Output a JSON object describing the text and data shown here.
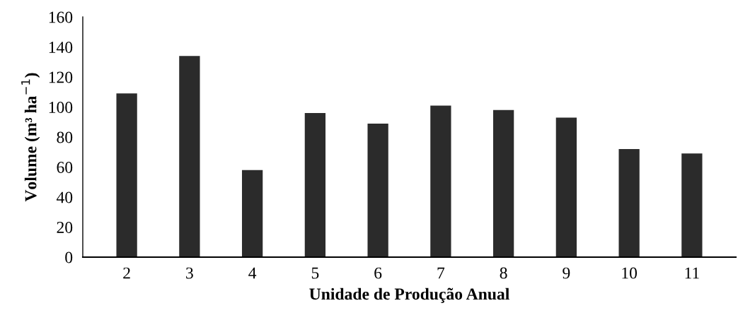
{
  "chart_data": {
    "type": "bar",
    "xlabel": "Unidade de Produção Anual",
    "ylabel": "Volume (m³ ha$^{−1}$)",
    "categories": [
      "2",
      "3",
      "4",
      "5",
      "6",
      "7",
      "8",
      "9",
      "10",
      "11"
    ],
    "values": [
      109,
      134,
      58,
      96,
      89,
      101,
      98,
      93,
      72,
      69
    ],
    "color": "#2b2b2b",
    "ylim": [
      0,
      160
    ],
    "yticks": [
      0,
      20,
      40,
      60,
      80,
      100,
      120,
      140,
      160
    ],
    "grid": false
  }
}
